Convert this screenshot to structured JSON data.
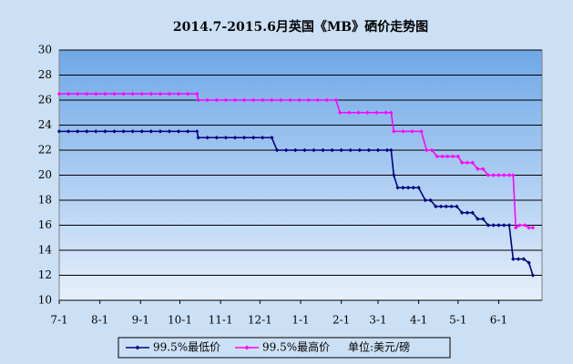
{
  "chart_data": {
    "type": "line",
    "title": "2014.7-2015.6月英国《MB》硒价走势图",
    "unit_note": "单位:美元/磅",
    "xlim": [
      0,
      368
    ],
    "ylim": [
      10,
      30
    ],
    "xticks": [
      {
        "value": 0,
        "label": "7-1"
      },
      {
        "value": 31,
        "label": "8-1"
      },
      {
        "value": 62,
        "label": "9-1"
      },
      {
        "value": 92,
        "label": "10-1"
      },
      {
        "value": 123,
        "label": "11-1"
      },
      {
        "value": 153,
        "label": "12-1"
      },
      {
        "value": 184,
        "label": "1-1"
      },
      {
        "value": 215,
        "label": "2-1"
      },
      {
        "value": 243,
        "label": "3-1"
      },
      {
        "value": 274,
        "label": "4-1"
      },
      {
        "value": 304,
        "label": "5-1"
      },
      {
        "value": 335,
        "label": "6-1"
      }
    ],
    "yticks": [
      10,
      12,
      14,
      16,
      18,
      20,
      22,
      24,
      26,
      28,
      30
    ],
    "grid": true,
    "series": [
      {
        "name": "99.5%最低价",
        "color": "#000080",
        "x": [
          0,
          7,
          14,
          21,
          28,
          35,
          42,
          49,
          56,
          63,
          70,
          77,
          84,
          91,
          98,
          105,
          106,
          113,
          120,
          127,
          134,
          141,
          148,
          155,
          162,
          166,
          173,
          180,
          187,
          194,
          201,
          208,
          215,
          222,
          229,
          236,
          243,
          250,
          253,
          255,
          258,
          262,
          266,
          270,
          274,
          279,
          283,
          287,
          291,
          295,
          299,
          303,
          307,
          311,
          315,
          319,
          323,
          327,
          331,
          335,
          339,
          343,
          346,
          350,
          354,
          358,
          361
        ],
        "values": [
          23.5,
          23.5,
          23.5,
          23.5,
          23.5,
          23.5,
          23.5,
          23.5,
          23.5,
          23.5,
          23.5,
          23.5,
          23.5,
          23.5,
          23.5,
          23.5,
          23,
          23,
          23,
          23,
          23,
          23,
          23,
          23,
          23,
          22,
          22,
          22,
          22,
          22,
          22,
          22,
          22,
          22,
          22,
          22,
          22,
          22,
          22,
          20,
          19,
          19,
          19,
          19,
          19,
          18,
          18,
          17.5,
          17.5,
          17.5,
          17.5,
          17.5,
          17,
          17,
          17,
          16.5,
          16.5,
          16,
          16,
          16,
          16,
          16,
          13.3,
          13.3,
          13.3,
          13,
          12
        ]
      },
      {
        "name": "99.5%最高价",
        "color": "#ff00ff",
        "x": [
          0,
          7,
          14,
          21,
          28,
          35,
          42,
          49,
          56,
          63,
          70,
          77,
          84,
          91,
          98,
          105,
          106,
          113,
          120,
          127,
          134,
          141,
          148,
          155,
          162,
          169,
          176,
          183,
          190,
          197,
          204,
          211,
          214,
          221,
          228,
          235,
          242,
          249,
          253,
          255,
          262,
          269,
          276,
          280,
          284,
          288,
          292,
          296,
          300,
          304,
          307,
          311,
          315,
          319,
          323,
          327,
          331,
          335,
          339,
          343,
          346,
          348,
          351,
          355,
          358,
          361
        ],
        "values": [
          26.5,
          26.5,
          26.5,
          26.5,
          26.5,
          26.5,
          26.5,
          26.5,
          26.5,
          26.5,
          26.5,
          26.5,
          26.5,
          26.5,
          26.5,
          26.5,
          26,
          26,
          26,
          26,
          26,
          26,
          26,
          26,
          26,
          26,
          26,
          26,
          26,
          26,
          26,
          26,
          25,
          25,
          25,
          25,
          25,
          25,
          25,
          23.5,
          23.5,
          23.5,
          23.5,
          22,
          22,
          21.5,
          21.5,
          21.5,
          21.5,
          21.5,
          21,
          21,
          21,
          20.5,
          20.5,
          20,
          20,
          20,
          20,
          20,
          20,
          15.8,
          16,
          16,
          15.8,
          15.8
        ]
      }
    ]
  }
}
